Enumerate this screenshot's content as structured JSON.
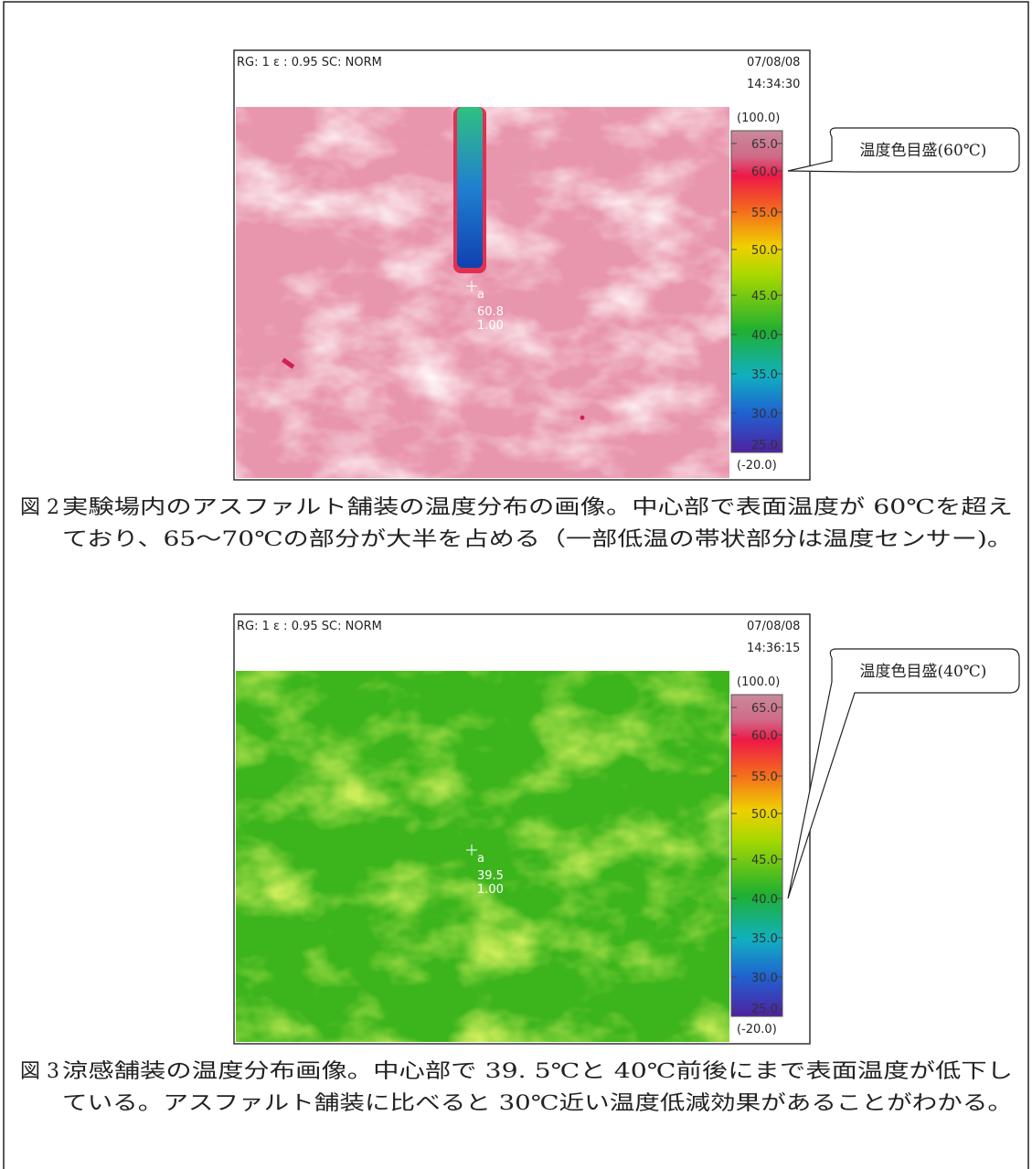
{
  "figures": [
    {
      "header": {
        "settings": "RG: 1  ε : 0.95  SC: NORM",
        "date": "07/08/08",
        "time": "14:34:30"
      },
      "scale": {
        "max": "(100.0)",
        "ticks": [
          "65.0",
          "60.0",
          "55.0",
          "50.0",
          "45.0",
          "40.0",
          "35.0",
          "30.0",
          "25.0"
        ],
        "min": "(-20.0)"
      },
      "point": {
        "label": "a",
        "temperature": "60.8",
        "emissivity": "1.00"
      },
      "callout": "温度色目盛(60℃)",
      "caption": {
        "label": "図 2",
        "lines": [
          "実験場内のアスファルト舗装の温度分布の画像。中心部で表面温度が 60℃を超え",
          "ており、65〜70℃の部分が大半を占める（一部低温の帯状部分は温度センサー)。"
        ]
      }
    },
    {
      "header": {
        "settings": "RG: 1  ε : 0.95  SC: NORM",
        "date": "07/08/08",
        "time": "14:36:15"
      },
      "scale": {
        "max": "(100.0)",
        "ticks": [
          "65.0",
          "60.0",
          "55.0",
          "50.0",
          "45.0",
          "40.0",
          "35.0",
          "30.0",
          "25.0"
        ],
        "min": "(-20.0)"
      },
      "point": {
        "label": "a",
        "temperature": "39.5",
        "emissivity": "1.00"
      },
      "callout": "温度色目盛(40℃)",
      "caption": {
        "label": "図 3",
        "lines": [
          "涼感舗装の温度分布画像。中心部で 39. 5℃と 40℃前後にまで表面温度が低下し",
          "ている。アスファルト舗装に比べると 30℃近い温度低減効果があることがわかる。"
        ]
      }
    }
  ]
}
